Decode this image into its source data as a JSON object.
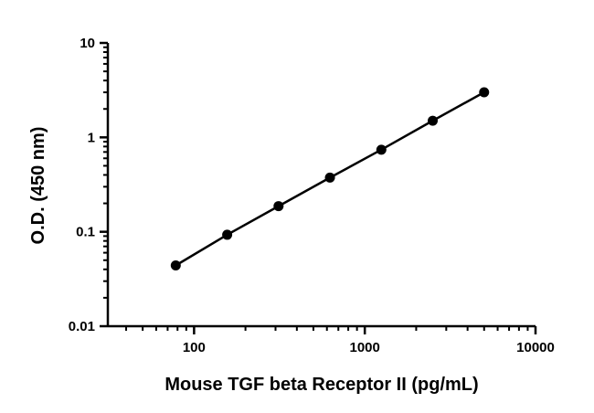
{
  "chart_data": {
    "type": "line",
    "title": "",
    "xlabel": "Mouse TGF beta Receptor II (pg/mL)",
    "ylabel": "O.D. (450 nm)",
    "x_scale": "log",
    "y_scale": "log",
    "xlim": [
      31.25,
      10000
    ],
    "ylim": [
      0.01,
      10
    ],
    "x_ticks": [
      "100",
      "1000",
      "10000"
    ],
    "y_ticks": [
      "0.01",
      "0.1",
      "1",
      "10"
    ],
    "grid": false,
    "legend": "none",
    "series": [
      {
        "x": [
          78.1,
          156.3,
          312.5,
          625,
          1250,
          2500,
          5000
        ],
        "y": [
          0.044,
          0.093,
          0.187,
          0.375,
          0.74,
          1.5,
          3.0
        ]
      }
    ],
    "colors": {
      "line": "#000000",
      "marker": "#000000"
    }
  }
}
